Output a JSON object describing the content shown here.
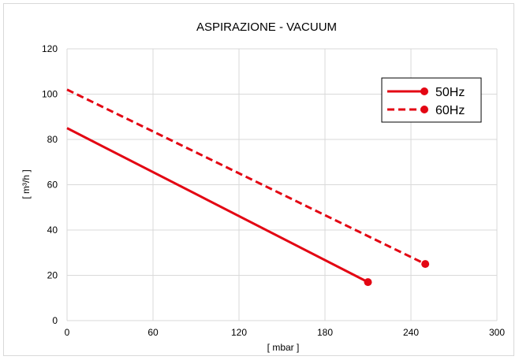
{
  "chart_data": {
    "type": "line",
    "title": "ASPIRAZIONE - VACUUM",
    "xlabel": "[ mbar ]",
    "ylabel": "[ m³/h ]",
    "xlim": [
      0,
      300
    ],
    "ylim": [
      0,
      120
    ],
    "xticks": [
      0,
      60,
      120,
      180,
      240,
      300
    ],
    "yticks": [
      0,
      20,
      40,
      60,
      80,
      100,
      120
    ],
    "grid": true,
    "legend_position": "top-right",
    "series": [
      {
        "name": "50Hz",
        "style": "solid",
        "color": "#e30613",
        "x": [
          0,
          210
        ],
        "y": [
          85,
          17
        ]
      },
      {
        "name": "60Hz",
        "style": "dashed",
        "color": "#e30613",
        "x": [
          0,
          250
        ],
        "y": [
          102,
          25
        ]
      }
    ]
  }
}
